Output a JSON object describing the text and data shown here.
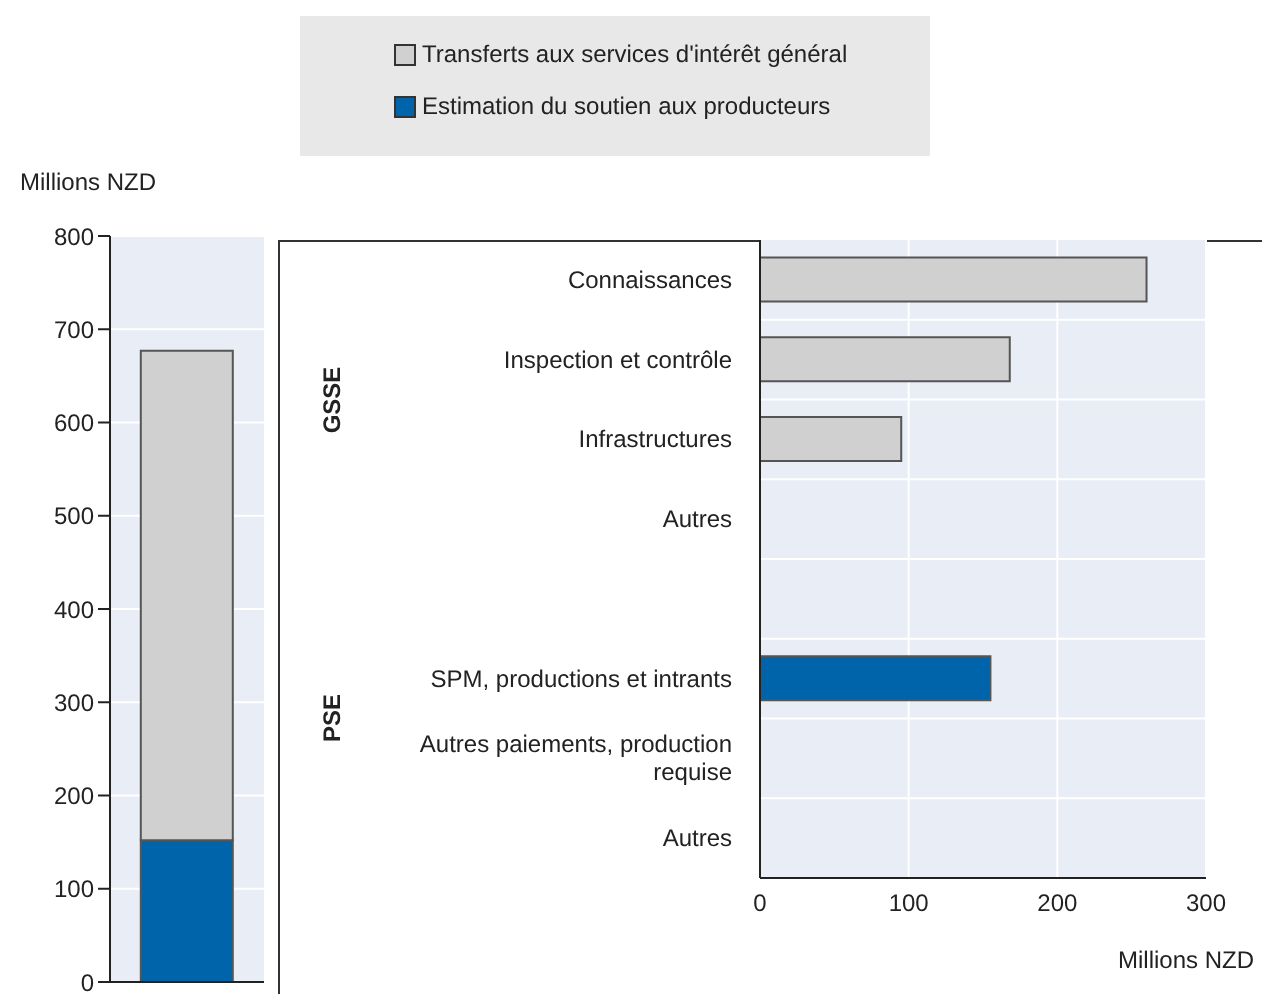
{
  "chart_data": [
    {
      "type": "bar",
      "stacked": true,
      "categories": [
        null
      ],
      "ylabel": "Millions NZD",
      "ylim": [
        0,
        800
      ],
      "yticks": [
        0,
        100,
        200,
        300,
        400,
        500,
        600,
        700,
        800
      ],
      "grid": "y",
      "legend": "top",
      "series": [
        {
          "name": "Estimation du soutien aux producteurs",
          "color": "#0064ab",
          "values": [
            152
          ]
        },
        {
          "name": "Transferts aux services d'intérêt général",
          "color": "#d0d0d0",
          "values": [
            525
          ]
        }
      ]
    },
    {
      "type": "bar",
      "orientation": "horizontal",
      "categories": [
        "Connaissances",
        "Inspection et contrôle",
        "Infrastructures",
        "Autres",
        null,
        "SPM, productions et intrants",
        "Autres paiements, production requise",
        "Autres"
      ],
      "values": [
        260,
        168,
        95,
        0,
        null,
        155,
        0,
        0
      ],
      "colors": [
        "#d0d0d0",
        "#d0d0d0",
        "#d0d0d0",
        "#d0d0d0",
        "#d0d0d0",
        "#0064ab",
        "#0064ab",
        "#0064ab"
      ],
      "xlim": [
        0,
        300
      ],
      "xticks": [
        0,
        100,
        200,
        300
      ],
      "xlabel": "Millions NZD",
      "grid": true,
      "annotations": [
        "GSSE",
        "PSE"
      ]
    }
  ]
}
